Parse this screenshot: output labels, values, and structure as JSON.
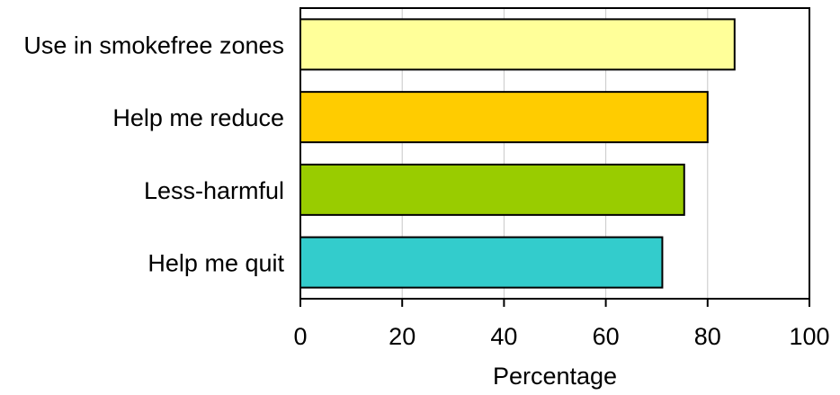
{
  "chart_data": {
    "type": "bar",
    "orientation": "horizontal",
    "categories": [
      "Use in smokefree zones",
      "Help me reduce",
      "Less-harmful",
      "Help me quit"
    ],
    "values": [
      85.3,
      80.0,
      75.4,
      71.1
    ],
    "colors": [
      "#ffff99",
      "#ffcc00",
      "#99cc00",
      "#33cccc"
    ],
    "xlabel": "Percentage",
    "xlim": [
      0,
      100
    ],
    "xticks": [
      0,
      20,
      40,
      60,
      80,
      100
    ],
    "xtick_labels": [
      "0",
      "20",
      "40",
      "60",
      "80",
      "100"
    ],
    "grid": "vertical",
    "legend": "none"
  }
}
